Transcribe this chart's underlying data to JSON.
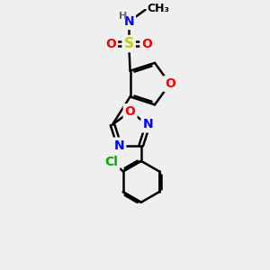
{
  "background_color": "#efefef",
  "bond_color": "#000000",
  "bond_width": 1.8,
  "atom_colors": {
    "O": "#ff0000",
    "N": "#0000ff",
    "S": "#cccc00",
    "Cl": "#00aa00",
    "H": "#666666",
    "C": "#000000"
  },
  "font_size": 10
}
